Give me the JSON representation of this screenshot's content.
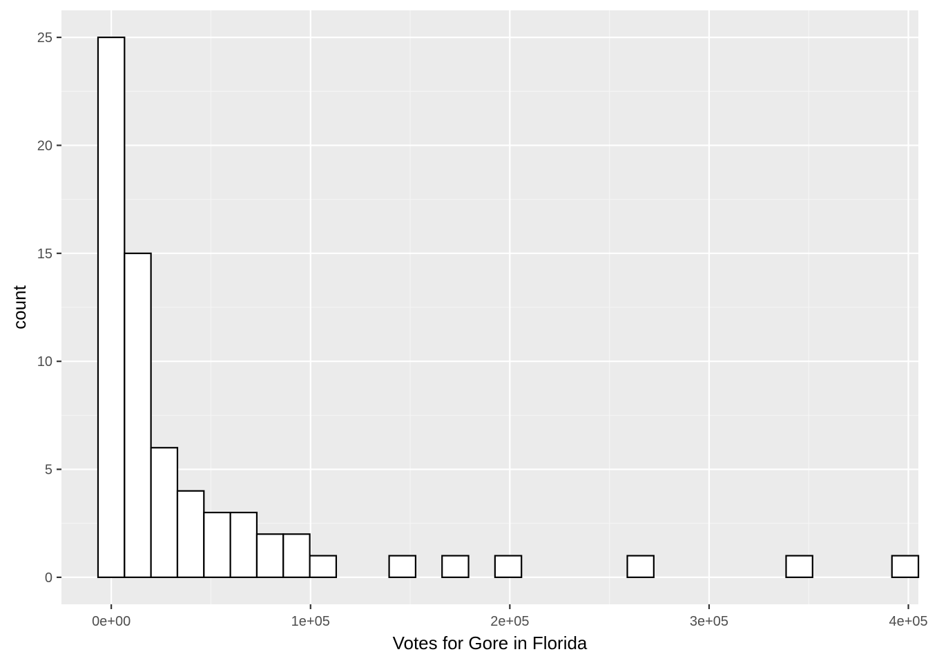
{
  "chart_data": {
    "type": "bar",
    "subtype": "histogram",
    "title": "",
    "xlabel": "Votes for Gore in Florida",
    "ylabel": "count",
    "xlim": [
      -25000,
      405000
    ],
    "ylim": [
      -1.25,
      26.25
    ],
    "x_ticks": [
      {
        "value": 0,
        "label": "0e+00"
      },
      {
        "value": 100000,
        "label": "1e+05"
      },
      {
        "value": 200000,
        "label": "2e+05"
      },
      {
        "value": 300000,
        "label": "3e+05"
      },
      {
        "value": 400000,
        "label": "4e+05"
      }
    ],
    "y_ticks": [
      {
        "value": 0,
        "label": "0"
      },
      {
        "value": 5,
        "label": "5"
      },
      {
        "value": 10,
        "label": "10"
      },
      {
        "value": 15,
        "label": "15"
      },
      {
        "value": 20,
        "label": "20"
      },
      {
        "value": 25,
        "label": "25"
      }
    ],
    "bins": {
      "start": -6640,
      "width": 13280,
      "counts": [
        25,
        15,
        6,
        4,
        3,
        3,
        2,
        2,
        1,
        0,
        0,
        1,
        0,
        1,
        0,
        1,
        0,
        0,
        0,
        0,
        1,
        0,
        0,
        0,
        0,
        0,
        1,
        0,
        0,
        0,
        1
      ]
    },
    "grid": true,
    "legend": "none",
    "colors": {
      "panel_background": "#ebebeb",
      "grid_major": "#ffffff",
      "grid_minor": "#f5f5f5",
      "bar_fill": "#ffffff",
      "bar_outline": "#000000",
      "tick_label": "#4d4d4d",
      "tick_mark": "#333333",
      "axis_title": "#000000"
    }
  }
}
